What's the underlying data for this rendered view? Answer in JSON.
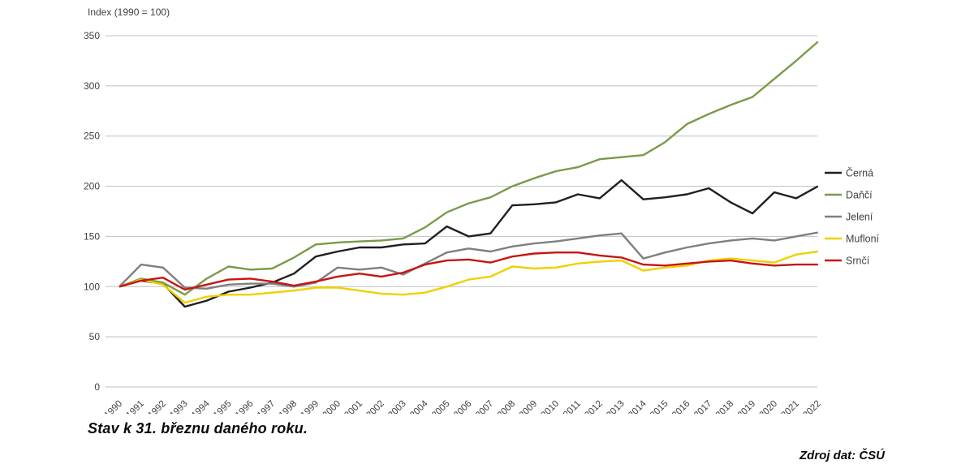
{
  "axis_title": "Index (1990 = 100)",
  "footnote": "Stav k 31. březnu daného roku.",
  "source": "Zdroj dat: ČSÚ",
  "colors": {
    "grid": "#bfbfbf",
    "tick_label": "#404040",
    "legend_label": "#404040",
    "cerna": "#1f1f1f",
    "danci": "#7a9a49",
    "jeleni": "#7f7f7f",
    "mufloni": "#f0d000",
    "srnci": "#c81414"
  },
  "chart_data": {
    "type": "line",
    "title": "Index (1990 = 100)",
    "xlabel": "",
    "ylabel": "Index (1990 = 100)",
    "ylim": [
      0,
      350
    ],
    "ytick_step": 50,
    "grid": true,
    "legend_position": "right",
    "x": [
      1990,
      1991,
      1992,
      1993,
      1994,
      1995,
      1996,
      1997,
      1998,
      1999,
      2000,
      2001,
      2002,
      2003,
      2004,
      2005,
      2006,
      2007,
      2008,
      2009,
      2010,
      2011,
      2012,
      2013,
      2014,
      2015,
      2016,
      2017,
      2018,
      2019,
      2020,
      2021,
      2022
    ],
    "series": [
      {
        "name": "Černá",
        "color": "#1f1f1f",
        "values": [
          100,
          106,
          103,
          80,
          86,
          95,
          99,
          104,
          113,
          130,
          135,
          139,
          139,
          142,
          143,
          160,
          150,
          153,
          181,
          182,
          184,
          192,
          188,
          206,
          187,
          189,
          192,
          198,
          184,
          173,
          194,
          188,
          200
        ]
      },
      {
        "name": "Daňčí",
        "color": "#7a9a49",
        "values": [
          100,
          108,
          104,
          92,
          108,
          120,
          117,
          118,
          129,
          142,
          144,
          145,
          146,
          148,
          159,
          174,
          183,
          189,
          200,
          208,
          215,
          219,
          227,
          229,
          231,
          244,
          262,
          272,
          281,
          289,
          307,
          325,
          344
        ]
      },
      {
        "name": "Jelení",
        "color": "#7f7f7f",
        "values": [
          100,
          122,
          119,
          99,
          98,
          102,
          103,
          103,
          100,
          104,
          119,
          117,
          119,
          112,
          123,
          134,
          138,
          135,
          140,
          143,
          145,
          148,
          151,
          153,
          128,
          134,
          139,
          143,
          146,
          148,
          146,
          150,
          154
        ]
      },
      {
        "name": "Mufloní",
        "color": "#f0d000",
        "values": [
          100,
          107,
          102,
          84,
          90,
          92,
          92,
          94,
          96,
          99,
          99,
          96,
          93,
          92,
          94,
          100,
          107,
          110,
          120,
          118,
          119,
          123,
          125,
          126,
          116,
          119,
          121,
          126,
          128,
          126,
          124,
          132,
          135
        ]
      },
      {
        "name": "Srnčí",
        "color": "#c81414",
        "values": [
          100,
          106,
          109,
          97,
          102,
          107,
          108,
          105,
          101,
          105,
          110,
          113,
          110,
          114,
          122,
          126,
          127,
          124,
          130,
          133,
          134,
          134,
          131,
          129,
          122,
          121,
          123,
          125,
          126,
          123,
          121,
          122,
          122
        ]
      }
    ]
  }
}
